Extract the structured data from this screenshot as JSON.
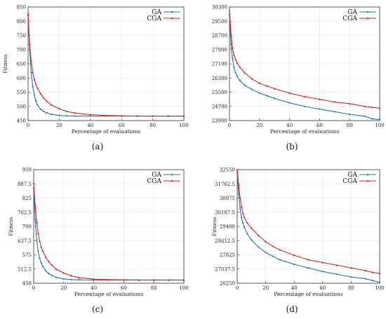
{
  "chart_data": [
    {
      "type": "line",
      "panel_label": "(a)",
      "xlabel": "Percentage of evaluations",
      "ylabel": "Fitness",
      "xlim": [
        0,
        100
      ],
      "ylim": [
        450,
        850
      ],
      "x_ticks": [
        0,
        20,
        40,
        60,
        80,
        100
      ],
      "y_ticks": [
        450,
        500,
        550,
        600,
        650,
        700,
        750,
        800,
        850
      ],
      "grid": true,
      "legend_position": "top-right",
      "series": [
        {
          "name": "GA",
          "color": "#1f77b4",
          "x": [
            0,
            1,
            2,
            3,
            4,
            5,
            6,
            8,
            10,
            12,
            15,
            20,
            25,
            30,
            40,
            50,
            60,
            70,
            80,
            90,
            100
          ],
          "values": [
            820,
            700,
            620,
            570,
            540,
            520,
            505,
            490,
            482,
            477,
            472,
            468,
            467,
            466,
            466,
            466,
            466,
            466,
            466,
            466,
            466
          ]
        },
        {
          "name": "CGA",
          "color": "#d62728",
          "x": [
            0,
            1,
            2,
            3,
            4,
            5,
            6,
            8,
            10,
            12,
            15,
            20,
            25,
            30,
            40,
            50,
            60,
            70,
            80,
            90,
            100
          ],
          "values": [
            825,
            720,
            660,
            620,
            595,
            578,
            565,
            545,
            530,
            518,
            505,
            492,
            482,
            477,
            471,
            468,
            467,
            466,
            466,
            466,
            466
          ]
        }
      ]
    },
    {
      "type": "line",
      "panel_label": "(b)",
      "xlabel": "Percentage of evaluations",
      "ylabel": "",
      "xlim": [
        0,
        100
      ],
      "ylim": [
        23900,
        30300
      ],
      "x_ticks": [
        0,
        20,
        40,
        60,
        80,
        100
      ],
      "y_ticks": [
        23900,
        24700,
        25500,
        26300,
        27100,
        27900,
        28700,
        29500,
        30300
      ],
      "grid": true,
      "legend_position": "top-right",
      "series": [
        {
          "name": "GA",
          "color": "#1f77b4",
          "x": [
            0,
            1,
            2,
            3,
            4,
            5,
            7,
            10,
            15,
            20,
            25,
            30,
            40,
            50,
            60,
            70,
            80,
            90,
            95,
            100
          ],
          "values": [
            29900,
            28200,
            27400,
            26900,
            26600,
            26400,
            26150,
            25900,
            25650,
            25450,
            25300,
            25150,
            24900,
            24700,
            24550,
            24400,
            24250,
            24150,
            24000,
            23950
          ]
        },
        {
          "name": "CGA",
          "color": "#d62728",
          "x": [
            0,
            1,
            2,
            3,
            4,
            5,
            7,
            10,
            15,
            20,
            25,
            30,
            40,
            50,
            60,
            70,
            80,
            90,
            95,
            100
          ],
          "values": [
            30100,
            28800,
            28000,
            27600,
            27350,
            27150,
            26900,
            26600,
            26250,
            26000,
            25850,
            25700,
            25450,
            25250,
            25100,
            24950,
            24850,
            24700,
            24650,
            24600
          ]
        }
      ]
    },
    {
      "type": "line",
      "panel_label": "(c)",
      "xlabel": "Percentage of evaluations",
      "ylabel": "Fitness",
      "xlim": [
        0,
        100
      ],
      "ylim": [
        450,
        950
      ],
      "x_ticks": [
        0,
        20,
        40,
        60,
        80,
        100
      ],
      "y_ticks": [
        450,
        512.5,
        575,
        637.5,
        700,
        762.5,
        825,
        887.5,
        950
      ],
      "grid": true,
      "legend_position": "top-right",
      "series": [
        {
          "name": "GA",
          "color": "#1f77b4",
          "x": [
            0,
            1,
            2,
            3,
            4,
            5,
            6,
            8,
            10,
            12,
            15,
            20,
            25,
            30,
            40,
            50,
            60,
            70,
            80,
            90,
            100
          ],
          "values": [
            870,
            730,
            640,
            590,
            560,
            540,
            525,
            505,
            492,
            485,
            476,
            469,
            466,
            465,
            464,
            464,
            464,
            464,
            464,
            464,
            464
          ]
        },
        {
          "name": "CGA",
          "color": "#d62728",
          "x": [
            0,
            1,
            2,
            3,
            4,
            5,
            6,
            8,
            10,
            12,
            15,
            20,
            25,
            30,
            40,
            50,
            60,
            70,
            80,
            90,
            100
          ],
          "values": [
            890,
            790,
            720,
            670,
            635,
            610,
            592,
            565,
            545,
            530,
            512,
            495,
            483,
            475,
            468,
            466,
            465,
            464,
            464,
            464,
            464
          ]
        }
      ]
    },
    {
      "type": "line",
      "panel_label": "(d)",
      "xlabel": "Percentage of evaluations",
      "ylabel": "Fitness",
      "xlim": [
        0,
        100
      ],
      "ylim": [
        26250,
        32550
      ],
      "x_ticks": [
        0,
        20,
        40,
        60,
        80,
        100
      ],
      "y_ticks": [
        26250,
        27037.5,
        27825,
        28612.5,
        29400,
        30187.5,
        30975,
        31762.5,
        32550
      ],
      "grid": true,
      "legend_position": "top-right",
      "series": [
        {
          "name": "GA",
          "color": "#1f77b4",
          "x": [
            0,
            1,
            2,
            3,
            4,
            5,
            7,
            10,
            15,
            20,
            25,
            30,
            40,
            50,
            60,
            70,
            80,
            90,
            95,
            100
          ],
          "values": [
            32400,
            31200,
            30400,
            29900,
            29600,
            29350,
            29000,
            28650,
            28250,
            27950,
            27750,
            27550,
            27300,
            27100,
            26900,
            26750,
            26600,
            26500,
            26400,
            26300
          ]
        },
        {
          "name": "CGA",
          "color": "#d62728",
          "x": [
            0,
            1,
            2,
            3,
            4,
            5,
            7,
            10,
            15,
            20,
            25,
            30,
            40,
            50,
            60,
            70,
            80,
            90,
            95,
            100
          ],
          "values": [
            32550,
            31700,
            31000,
            30500,
            30150,
            29900,
            29600,
            29300,
            28900,
            28550,
            28300,
            28100,
            27800,
            27550,
            27400,
            27250,
            27100,
            26950,
            26850,
            26800
          ]
        }
      ]
    }
  ]
}
